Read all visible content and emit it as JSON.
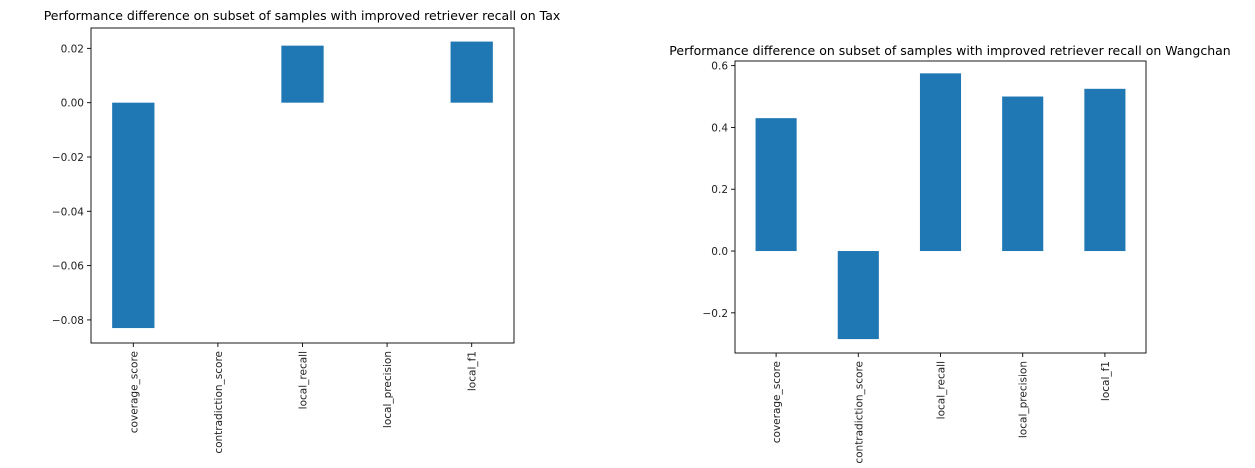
{
  "chart_data": [
    {
      "type": "bar",
      "title": "Performance difference on subset of samples with improved retriever recall on Tax",
      "xlabel": "",
      "ylabel": "",
      "categories": [
        "coverage_score",
        "contradiction_score",
        "local_recall",
        "local_precision",
        "local_f1"
      ],
      "values": [
        -0.083,
        0.0,
        0.021,
        0.0,
        0.0225
      ],
      "ylim": [
        -0.0885,
        0.0275
      ],
      "yticks": [
        0.02,
        0.0,
        -0.02,
        -0.04,
        -0.06,
        -0.08
      ],
      "ytick_labels": [
        "0.02",
        "0.00",
        "−0.02",
        "−0.04",
        "−0.06",
        "−0.08"
      ],
      "bar_color": "#1f77b4",
      "grid": false,
      "legend": "none"
    },
    {
      "type": "bar",
      "title": "Performance difference on subset of samples with improved retriever recall on Wangchan",
      "xlabel": "",
      "ylabel": "",
      "categories": [
        "coverage_score",
        "contradiction_score",
        "local_recall",
        "local_precision",
        "local_f1"
      ],
      "values": [
        0.43,
        -0.285,
        0.575,
        0.5,
        0.525
      ],
      "ylim": [
        -0.33,
        0.615
      ],
      "yticks": [
        0.6,
        0.4,
        0.2,
        0.0,
        -0.2
      ],
      "ytick_labels": [
        "0.6",
        "0.4",
        "0.2",
        "0.0",
        "−0.2"
      ],
      "bar_color": "#1f77b4",
      "grid": false,
      "legend": "none"
    }
  ]
}
